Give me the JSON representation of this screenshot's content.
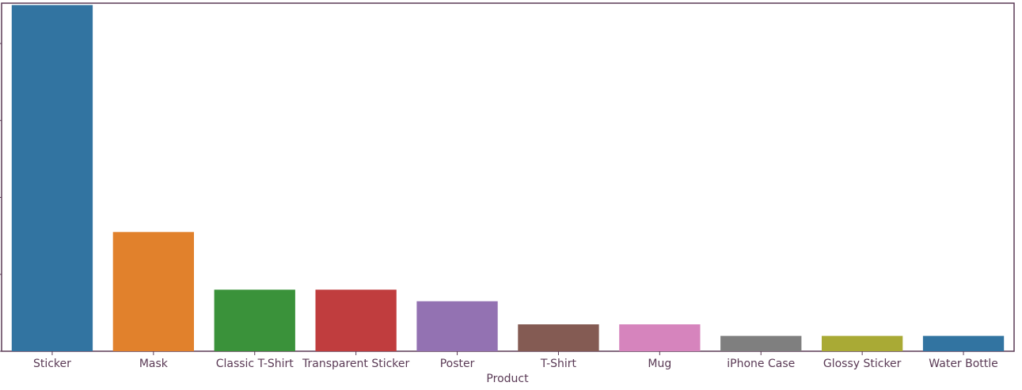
{
  "chart_data": {
    "type": "bar",
    "title": "",
    "xlabel": "Product",
    "ylabel": "",
    "categories": [
      "Sticker",
      "Mask",
      "Classic T-Shirt",
      "Transparent Sticker",
      "Poster",
      "T-Shirt",
      "Mug",
      "iPhone Case",
      "Glossy Sticker",
      "Water Bottle"
    ],
    "values": [
      90,
      31,
      16,
      16,
      13,
      7,
      7,
      4,
      4,
      4
    ],
    "ylim": [
      0,
      90.5
    ],
    "yticks": [
      0,
      20,
      40,
      60,
      80
    ],
    "ytick_labels_visible": false,
    "grid": false,
    "legend": "none",
    "colors": [
      "#3274a1",
      "#e1812c",
      "#3a923a",
      "#c03d3e",
      "#9372b2",
      "#845b53",
      "#d684bd",
      "#7f7f7f",
      "#a9aa35",
      "#3274a1"
    ],
    "axis_color": "#5a3a55"
  }
}
